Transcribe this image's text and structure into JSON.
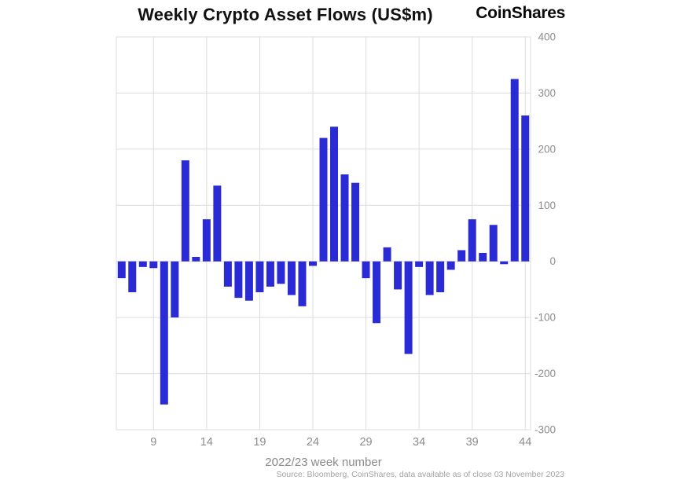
{
  "header": {
    "title": "Weekly Crypto Asset Flows (US$m)",
    "brand": "CoinShares"
  },
  "footer": {
    "source": "Source: Bloomberg, CoinShares, data available as of close 03 November 2023"
  },
  "chart_data": {
    "type": "bar",
    "title": "Weekly Crypto Asset Flows (US$m)",
    "xlabel": "2022/23 week number",
    "ylabel": "",
    "x": [
      6,
      7,
      8,
      9,
      10,
      11,
      12,
      13,
      14,
      15,
      16,
      17,
      18,
      19,
      20,
      21,
      22,
      23,
      24,
      25,
      26,
      27,
      28,
      29,
      30,
      31,
      32,
      33,
      34,
      35,
      36,
      37,
      38,
      39,
      40,
      41,
      42,
      43,
      44
    ],
    "values": [
      -30,
      -55,
      -10,
      -12,
      -255,
      -100,
      180,
      8,
      75,
      135,
      -45,
      -65,
      -70,
      -55,
      -45,
      -40,
      -60,
      -80,
      -8,
      220,
      240,
      155,
      140,
      -30,
      -110,
      25,
      -50,
      -165,
      -10,
      -60,
      -55,
      -15,
      20,
      75,
      15,
      65,
      -5,
      325,
      260
    ],
    "x_ticks": [
      9,
      14,
      19,
      24,
      29,
      34,
      39,
      44
    ],
    "y_ticks": [
      -300,
      -200,
      -100,
      0,
      100,
      200,
      300,
      400
    ],
    "ylim": [
      -300,
      400
    ],
    "bar_color": "#2B2BD5",
    "grid_color": "#dcdcdc",
    "axis_label_color": "#8c8c8c",
    "legend": "none",
    "grid": true,
    "y_axis_side": "right"
  }
}
